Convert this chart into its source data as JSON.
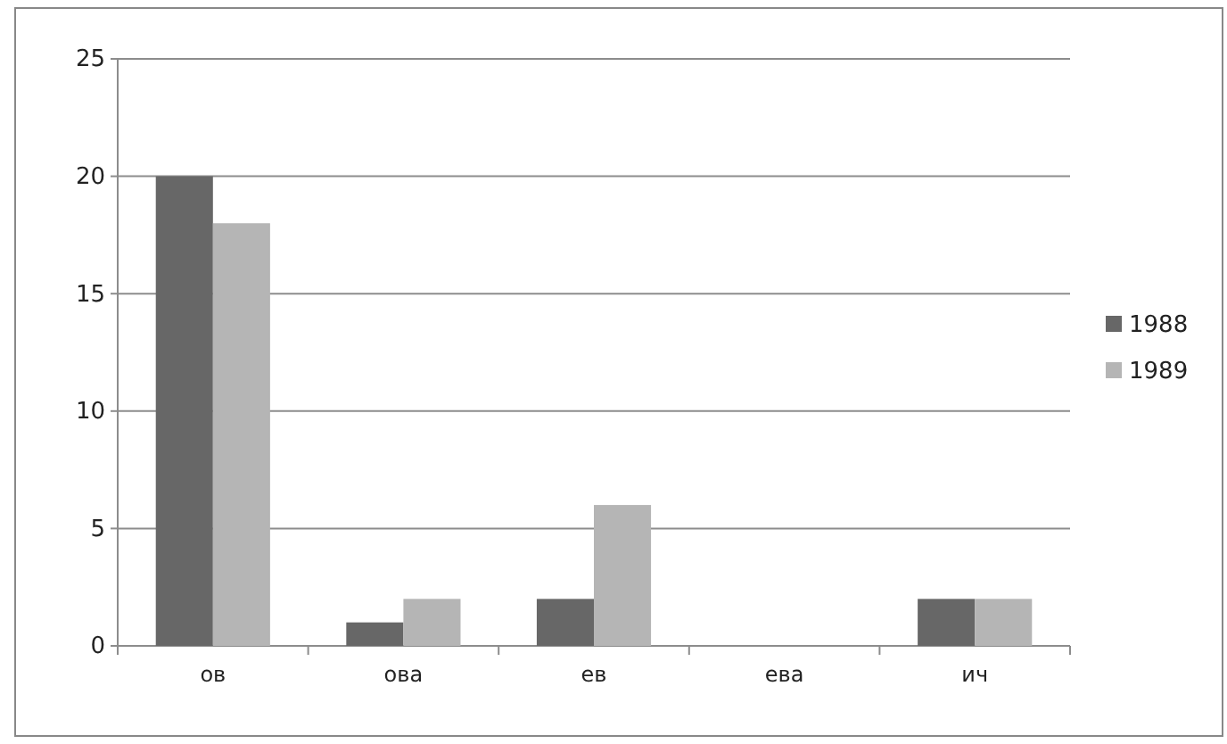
{
  "chart_data": {
    "type": "bar",
    "categories": [
      "ов",
      "ова",
      "ев",
      "ева",
      "ич"
    ],
    "series": [
      {
        "name": "1988",
        "color": "#676767",
        "values": [
          20,
          1,
          2,
          0,
          2
        ]
      },
      {
        "name": "1989",
        "color": "#b5b5b5",
        "values": [
          18,
          2,
          6,
          0,
          2
        ]
      }
    ],
    "ylim": [
      0,
      25
    ],
    "yticks": [
      0,
      5,
      10,
      15,
      20,
      25
    ],
    "grid": "y",
    "legend": "right"
  }
}
